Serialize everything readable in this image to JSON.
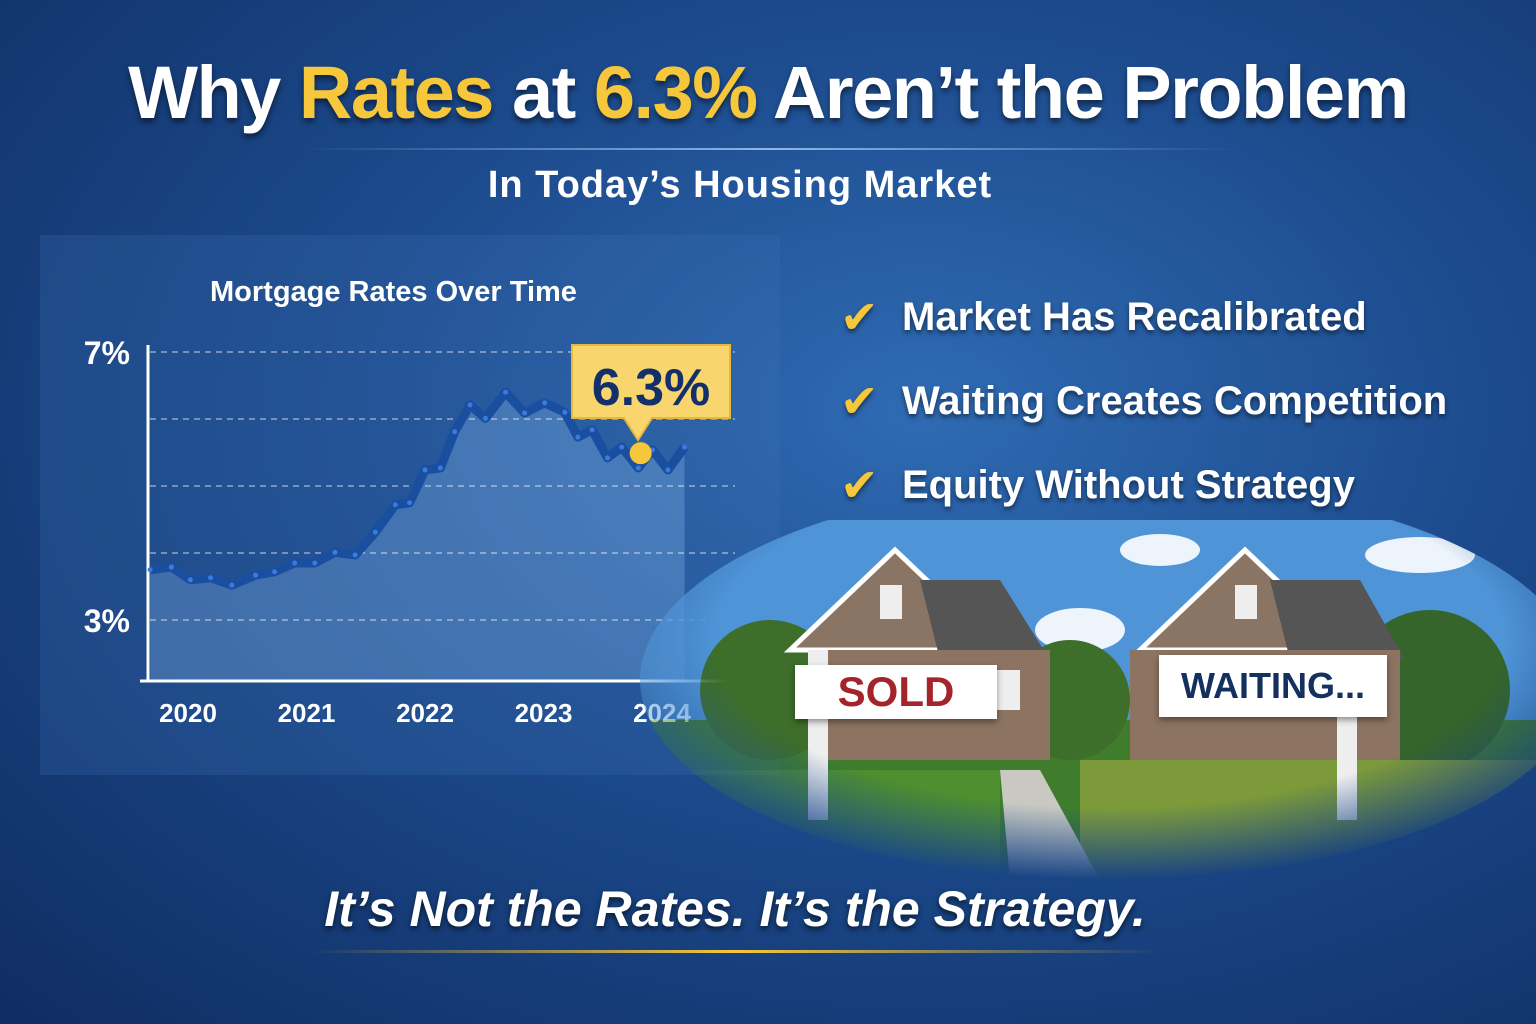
{
  "title": {
    "part1": "Why ",
    "part2": "Rates",
    "part3": " at ",
    "part4": "6.3%",
    "part5": " Aren’t the Problem"
  },
  "subtitle": "In Today’s Housing Market",
  "checklist": [
    {
      "icon": "checkmark-icon",
      "label": "Market Has Recalibrated"
    },
    {
      "icon": "checkmark-icon",
      "label": "Waiting Creates Competition"
    },
    {
      "icon": "checkmark-icon",
      "label": "Equity Without Strategy"
    }
  ],
  "signs": {
    "sold": "SOLD",
    "waiting": "WAITING..."
  },
  "tagline": "It’s Not the Rates. It’s the Strategy.",
  "colors": {
    "accent": "#f7c73b",
    "line": "#1a4fa0",
    "sold": "#a3242a",
    "waiting": "#14305e"
  },
  "chart_data": {
    "type": "line",
    "title": "Mortgage Rates Over Time",
    "ytick_labels": [
      "7%",
      "3%"
    ],
    "yticks": [
      7,
      3
    ],
    "gridlines": [
      7,
      6,
      5,
      4,
      3
    ],
    "ylim": [
      2.5,
      7.1
    ],
    "xtick_labels": [
      "2020",
      "2021",
      "2022",
      "2023",
      "2024"
    ],
    "xticks": [
      2020,
      2021,
      2022,
      2023,
      2024
    ],
    "grid": true,
    "x": [
      2019.68,
      2019.86,
      2020.02,
      2020.19,
      2020.37,
      2020.57,
      2020.73,
      2020.9,
      2021.07,
      2021.24,
      2021.41,
      2021.58,
      2021.75,
      2021.87,
      2022.0,
      2022.13,
      2022.25,
      2022.38,
      2022.51,
      2022.68,
      2022.84,
      2023.01,
      2023.18,
      2023.29,
      2023.41,
      2023.54,
      2023.66,
      2023.8,
      2023.92,
      2024.05,
      2024.19
    ],
    "values": [
      3.75,
      3.79,
      3.6,
      3.63,
      3.52,
      3.67,
      3.72,
      3.85,
      3.85,
      4.01,
      3.97,
      4.31,
      4.72,
      4.75,
      5.24,
      5.27,
      5.81,
      6.21,
      6.01,
      6.4,
      6.09,
      6.24,
      6.1,
      5.73,
      5.84,
      5.42,
      5.58,
      5.27,
      5.54,
      5.24,
      5.58
    ],
    "annotation": {
      "x": 2023.82,
      "y": 5.49,
      "label": "6.3%"
    }
  }
}
